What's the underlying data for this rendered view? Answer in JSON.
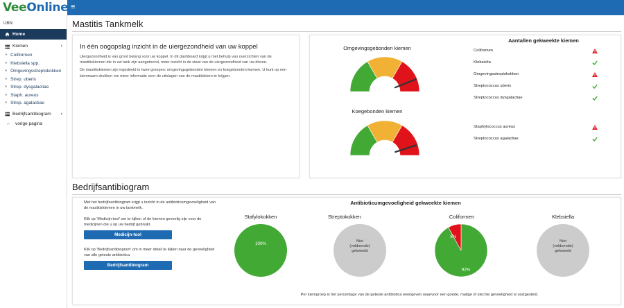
{
  "brand": {
    "name_part1": "Vee",
    "name_part2": "Online"
  },
  "header": {
    "menu_icon": "hamburger-icon",
    "menu_glyph": "≡"
  },
  "sidebar": {
    "ubn_label": "UBN:",
    "home": "Home",
    "kiemen": "Kiemen",
    "items": [
      "Coliformen",
      "Klebsiella spp.",
      "Omgevingsstreptokokken",
      "Strep. uberis",
      "Strep. dysgalactiae",
      "Staph. aureus",
      "Strep. agalactiae"
    ],
    "bedrijfsantibiogram": "Bedrijfsantibiogram",
    "back": "vorige pagina"
  },
  "mastitis": {
    "title": "Mastitis Tankmelk",
    "intro_title": "In één oogopslag inzicht in de uiergezondheid van uw koppel",
    "intro_p1": "Uiergezondheid is van groot belang voor uw koppel. In dit dashboard krijgt u met behulp van overzichten van de mastitiskiemen die in uw tank zijn aangetoond, meer inzicht in de staat van de uiergezondheid van uw dieren.",
    "intro_p2": "De mastitiskiemen zijn ingedeeld in twee groepen: omgevingsgebonden kiemen en koegebonden kiemen. U kunt op een kiemnaam drukken om meer informatie over de uitslagen van de mastitiskiem te krijgen.",
    "gauge1_title": "Omgevingsgebonden kiemen",
    "gauge2_title": "Koegebonden kiemen",
    "gauge1_level": 0.88,
    "gauge2_level": 0.9,
    "counts_title": "Aantallen gekweekte kiemen",
    "kiemen_group1": [
      {
        "name": "Coliformen",
        "status": "warning"
      },
      {
        "name": "Klebsiella",
        "status": "ok"
      },
      {
        "name": "Omgevingsstreptokokken",
        "status": "warning"
      },
      {
        "name": "Streptococcus uberis",
        "status": "ok"
      },
      {
        "name": "Streptococcus dysgalactiae",
        "status": "ok"
      }
    ],
    "kiemen_group2": [
      {
        "name": "Staphylococcus aureus",
        "status": "warning"
      },
      {
        "name": "Streptococcus agalactiae",
        "status": "ok"
      }
    ]
  },
  "antibiogram": {
    "title": "Bedrijfsantibiogram",
    "p1": "Met het bedrijfsantibiogram krijgt u inzicht in de antibioticumgevoeligheid van de mastitiskiemen in uw tankmelk.",
    "p2": "Klik op 'Medicijn-tool' om te kijken of de kiemen gevoelig zijn voor de medicijnen die u op uw bedrijf gebruikt.",
    "btn1": "Medicijn-tool",
    "p3": "Klik op 'Bedrijfsantibiogram' om in meer detail te kijken naar de gevoeligheid van alle geteste antibiotica.",
    "btn2": "Bedrijfsantibiogram",
    "chart_title": "Antibioticumgevoeligheid gekweekte kiemen",
    "footnote": "Per kiemgroep is het percentage van de geteste antibiotica weergeven waarvoor een goede, matige of slechte gevoeligheid is vastgesteld."
  },
  "colors": {
    "good": "#43a935",
    "moderate": "#f1b135",
    "bad": "#e0131b",
    "insufficient": "#cccccc",
    "brand_blue": "#1e6bb3",
    "nav_dark": "#1b3a5c"
  },
  "chart_data": [
    {
      "type": "pie",
      "title": "Stafylokokken",
      "slices": [
        {
          "name": "goed",
          "value": 100,
          "label": "100%"
        }
      ]
    },
    {
      "type": "pie",
      "title": "Streptokokken",
      "slices": [
        {
          "name": "niet gekweekt",
          "value": 100
        }
      ],
      "label_line1": "Niet",
      "label_line2": "(voldoende)",
      "label_line3": "gekweekt"
    },
    {
      "type": "pie",
      "title": "Coliformen",
      "slices": [
        {
          "name": "goed",
          "value": 92,
          "label": "92%"
        },
        {
          "name": "slecht",
          "value": 8,
          "label": "8%"
        }
      ]
    },
    {
      "type": "pie",
      "title": "Klebsiella",
      "slices": [
        {
          "name": "niet gekweekt",
          "value": 100
        }
      ],
      "label_line1": "Niet",
      "label_line2": "(voldoende)",
      "label_line3": "gekweekt"
    }
  ]
}
